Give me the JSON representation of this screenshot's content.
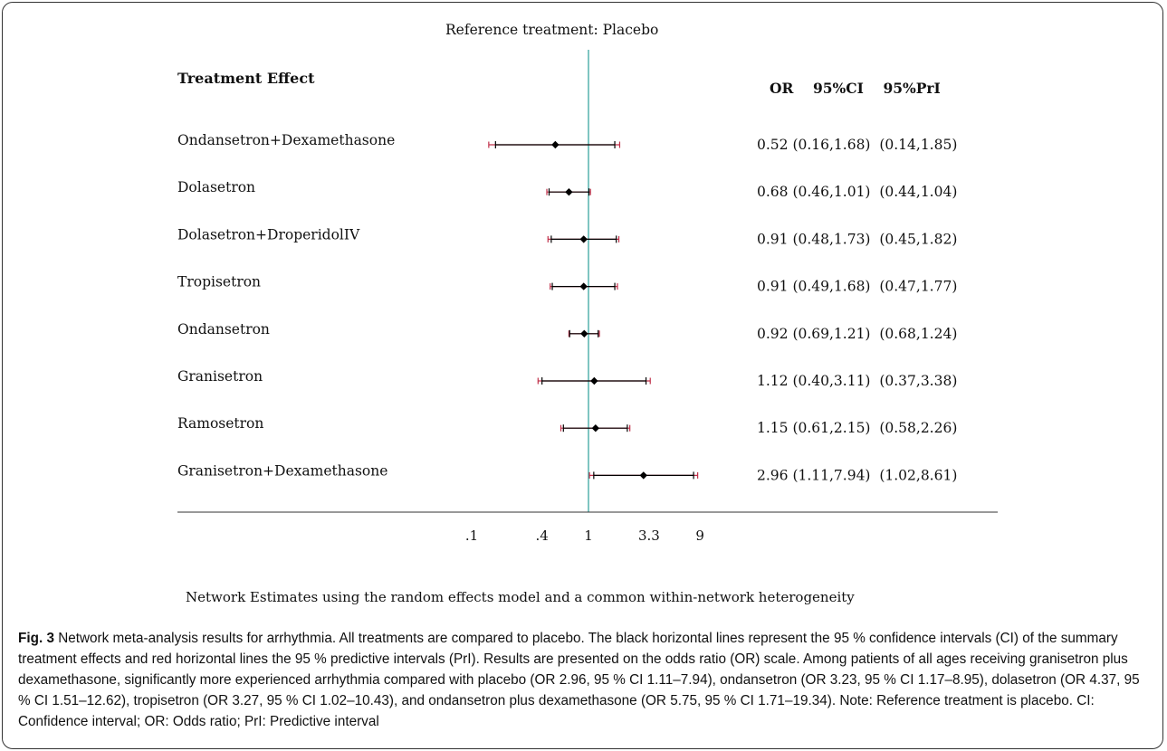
{
  "chart_data": {
    "type": "forest",
    "title": "Reference treatment: Placebo",
    "ylabel": "Treatment Effect",
    "xlabel": "Network Estimates using the random effects model and a common within-network heterogeneity",
    "x_scale": "log",
    "x_ticks": [
      ".1",
      ".4",
      "1",
      "3.3",
      "9"
    ],
    "x_tick_values": [
      0.1,
      0.4,
      1,
      3.3,
      9
    ],
    "xlim": [
      0.1,
      9
    ],
    "reference_line": 1,
    "column_header": "OR    95%CI    95%PrI",
    "colors": {
      "ci": "#000000",
      "pri": "#c0304a",
      "reference": "#3aa6a0",
      "point": "#000000"
    },
    "rows": [
      {
        "treatment": "Ondansetron+Dexamethasone",
        "or": 0.52,
        "ci": [
          0.16,
          1.68
        ],
        "pri": [
          0.14,
          1.85
        ],
        "label": "0.52 (0.16,1.68)  (0.14,1.85)"
      },
      {
        "treatment": "Dolasetron",
        "or": 0.68,
        "ci": [
          0.46,
          1.01
        ],
        "pri": [
          0.44,
          1.04
        ],
        "label": "0.68 (0.46,1.01)  (0.44,1.04)"
      },
      {
        "treatment": "Dolasetron+DroperidolIV",
        "or": 0.91,
        "ci": [
          0.48,
          1.73
        ],
        "pri": [
          0.45,
          1.82
        ],
        "label": "0.91 (0.48,1.73)  (0.45,1.82)"
      },
      {
        "treatment": "Tropisetron",
        "or": 0.91,
        "ci": [
          0.49,
          1.68
        ],
        "pri": [
          0.47,
          1.77
        ],
        "label": "0.91 (0.49,1.68)  (0.47,1.77)"
      },
      {
        "treatment": "Ondansetron",
        "or": 0.92,
        "ci": [
          0.69,
          1.21
        ],
        "pri": [
          0.68,
          1.24
        ],
        "label": "0.92 (0.69,1.21)  (0.68,1.24)"
      },
      {
        "treatment": "Granisetron",
        "or": 1.12,
        "ci": [
          0.4,
          3.11
        ],
        "pri": [
          0.37,
          3.38
        ],
        "label": "1.12 (0.40,3.11)  (0.37,3.38)"
      },
      {
        "treatment": "Ramosetron",
        "or": 1.15,
        "ci": [
          0.61,
          2.15
        ],
        "pri": [
          0.58,
          2.26
        ],
        "label": "1.15 (0.61,2.15)  (0.58,2.26)"
      },
      {
        "treatment": "Granisetron+Dexamethasone",
        "or": 2.96,
        "ci": [
          1.11,
          7.94
        ],
        "pri": [
          1.02,
          8.61
        ],
        "label": "2.96 (1.11,7.94)  (1.02,8.61)"
      }
    ]
  },
  "caption": {
    "fig_label": "Fig. 3",
    "text": " Network meta-analysis results for arrhythmia. All treatments are compared to placebo. The black horizontal lines represent the 95 % confidence intervals (CI) of the summary treatment effects and red horizontal lines the 95 % predictive intervals (PrI). Results are presented on the odds ratio (OR) scale. Among patients of all ages receiving granisetron plus dexamethasone, significantly more experienced arrhythmia compared with placebo (OR 2.96, 95 % CI 1.11–7.94), ondansetron (OR 3.23, 95 % CI 1.17–8.95), dolasetron (OR 4.37, 95 % CI 1.51–12.62), tropisetron (OR 3.27, 95 % CI 1.02–10.43), and ondansetron plus dexamethasone (OR 5.75, 95 % CI 1.71–19.34). Note: Reference treatment is placebo. CI: Confidence interval; OR: Odds ratio; PrI: Predictive interval"
  }
}
